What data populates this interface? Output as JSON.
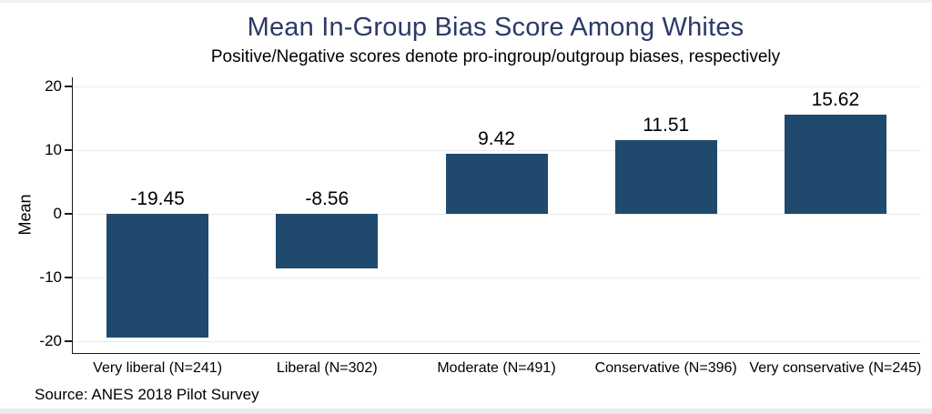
{
  "window": {
    "background": "#ffffff",
    "top_edge_color": "#eef2f0",
    "bottom_edge_color": "#e9e9e9"
  },
  "chart_data": {
    "type": "bar",
    "title": "Mean In-Group Bias Score Among Whites",
    "subtitle": "Positive/Negative scores denote pro-ingroup/outgroup biases, respectively",
    "ylabel": "Mean",
    "xlabel": "",
    "categories": [
      "Very liberal (N=241)",
      "Liberal (N=302)",
      "Moderate (N=491)",
      "Conservative (N=396)",
      "Very conservative (N=245)"
    ],
    "values": [
      -19.45,
      -8.56,
      9.42,
      11.51,
      15.62
    ],
    "value_labels": [
      "-19.45",
      "-8.56",
      "9.42",
      "11.51",
      "15.62"
    ],
    "yticks": [
      20,
      10,
      0,
      -10,
      -20
    ],
    "ylim": [
      -20,
      20
    ],
    "grid": true,
    "legend": "none",
    "bar_color": "#1f4a6e",
    "gridline_color": "#e9ebed",
    "axis_color": "#1a1a1a",
    "title_color": "#2b3a67",
    "source_note": "Source: ANES 2018 Pilot Survey"
  }
}
